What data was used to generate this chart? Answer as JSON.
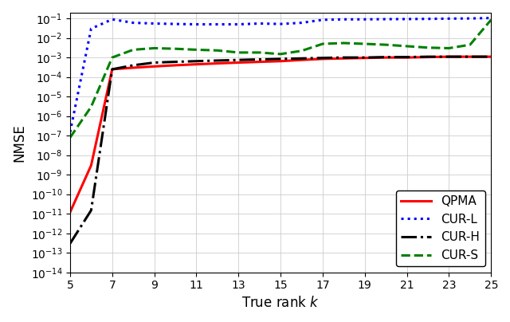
{
  "x": [
    5,
    6,
    7,
    8,
    9,
    10,
    11,
    12,
    13,
    14,
    15,
    16,
    17,
    18,
    19,
    20,
    21,
    22,
    23,
    24,
    25
  ],
  "QPMA": [
    1.2e-11,
    3e-09,
    0.00025,
    0.0003,
    0.00035,
    0.0004,
    0.00045,
    0.0005,
    0.00055,
    0.0006,
    0.00065,
    0.00075,
    0.00085,
    0.0009,
    0.00095,
    0.001,
    0.001,
    0.00105,
    0.0011,
    0.0011,
    0.0011
  ],
  "CUR_L": [
    1.5e-07,
    0.03,
    0.09,
    0.06,
    0.055,
    0.052,
    0.05,
    0.05,
    0.05,
    0.055,
    0.052,
    0.06,
    0.085,
    0.09,
    0.09,
    0.092,
    0.093,
    0.095,
    0.098,
    0.1,
    0.105
  ],
  "CUR_H": [
    3e-13,
    1.5e-11,
    0.00025,
    0.0004,
    0.00055,
    0.0006,
    0.00065,
    0.0007,
    0.00075,
    0.0008,
    0.00085,
    0.0009,
    0.00095,
    0.001,
    0.001,
    0.00105,
    0.00105,
    0.0011,
    0.0011,
    0.0011,
    0.0011
  ],
  "CUR_S": [
    8e-08,
    3e-06,
    0.001,
    0.0025,
    0.003,
    0.0028,
    0.0025,
    0.0023,
    0.0018,
    0.0018,
    0.0015,
    0.0022,
    0.005,
    0.0055,
    0.005,
    0.0045,
    0.0038,
    0.0032,
    0.003,
    0.0045,
    0.085
  ],
  "xlabel": "True rank $k$",
  "ylabel": "NMSE",
  "ylim": [
    1e-14,
    0.2
  ],
  "xlim": [
    5,
    25
  ],
  "xticks": [
    5,
    7,
    9,
    11,
    13,
    15,
    17,
    19,
    21,
    23,
    25
  ],
  "yticks_major": [
    -13,
    -11,
    -9,
    -7,
    -5,
    -3,
    -1
  ],
  "legend_labels": [
    "QPMA",
    "CUR-L",
    "CUR-H",
    "CUR-S"
  ],
  "colors": [
    "red",
    "blue",
    "black",
    "green"
  ],
  "linestyles": [
    "-",
    ":",
    "-.",
    "--"
  ],
  "linewidths": [
    2.2,
    2.2,
    2.2,
    2.2
  ]
}
